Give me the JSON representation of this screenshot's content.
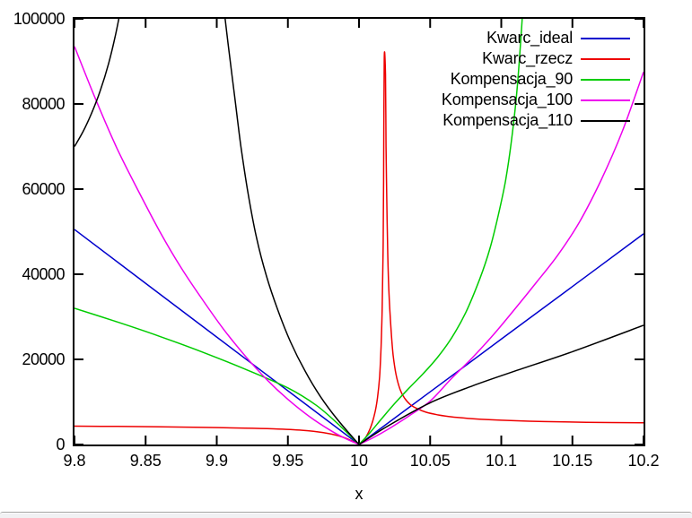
{
  "chart_data": {
    "type": "line",
    "title": "",
    "xlabel": "x",
    "ylabel": "",
    "xlim": [
      9.8,
      10.2
    ],
    "ylim": [
      0,
      100000
    ],
    "grid": false,
    "legend_position": "top-right-inside",
    "x_ticks": {
      "values": [
        9.8,
        9.85,
        9.9,
        9.95,
        10,
        10.05,
        10.1,
        10.15,
        10.2
      ],
      "labels": [
        "9.8",
        "9.85",
        "9.9",
        "9.95",
        "10",
        "10.05",
        "10.1",
        "10.15",
        "10.2"
      ]
    },
    "y_ticks": {
      "values": [
        0,
        20000,
        40000,
        60000,
        80000,
        100000
      ],
      "labels": [
        "0",
        "20000",
        "40000",
        "60000",
        "80000",
        "100000"
      ]
    },
    "series": [
      {
        "name": "Kwarc_ideal",
        "color": "#0000cd",
        "segments": [
          [
            [
              9.8,
              50500
            ],
            [
              9.85,
              37875
            ],
            [
              9.9,
              25250
            ],
            [
              9.95,
              12625
            ],
            [
              10,
              0
            ]
          ],
          [
            [
              10,
              0
            ],
            [
              10.05,
              12375
            ],
            [
              10.1,
              24750
            ],
            [
              10.15,
              37125
            ],
            [
              10.2,
              49500
            ]
          ]
        ]
      },
      {
        "name": "Kwarc_rzecz",
        "color": "#ee0000",
        "segments": [
          [
            [
              9.8,
              4310
            ],
            [
              9.83,
              4250
            ],
            [
              9.86,
              4160
            ],
            [
              9.89,
              4030
            ],
            [
              9.92,
              3860
            ],
            [
              9.94,
              3680
            ],
            [
              9.96,
              3350
            ],
            [
              9.975,
              2800
            ],
            [
              9.985,
              2100
            ],
            [
              9.992,
              1300
            ],
            [
              10,
              0
            ]
          ],
          [
            [
              10,
              0
            ],
            [
              10.004,
              1300
            ],
            [
              10.008,
              3900
            ],
            [
              10.011,
              7200
            ],
            [
              10.013,
              11000
            ],
            [
              10.0145,
              16000
            ],
            [
              10.0155,
              23000
            ],
            [
              10.0163,
              32000
            ],
            [
              10.0169,
              45000
            ],
            [
              10.0173,
              62000
            ],
            [
              10.0177,
              90500
            ],
            [
              10.0186,
              87000
            ],
            [
              10.019,
              70000
            ],
            [
              10.0195,
              58000
            ],
            [
              10.0202,
              45000
            ],
            [
              10.021,
              36000
            ],
            [
              10.0225,
              27000
            ],
            [
              10.024,
              21000
            ],
            [
              10.026,
              16500
            ],
            [
              10.029,
              12800
            ],
            [
              10.032,
              10900
            ],
            [
              10.036,
              9400
            ],
            [
              10.041,
              8400
            ],
            [
              10.047,
              7600
            ],
            [
              10.055,
              7000
            ],
            [
              10.065,
              6500
            ],
            [
              10.08,
              6050
            ],
            [
              10.1,
              5700
            ],
            [
              10.13,
              5400
            ],
            [
              10.16,
              5230
            ],
            [
              10.2,
              5100
            ]
          ]
        ]
      },
      {
        "name": "Kompensacja_90",
        "color": "#00cc00",
        "segments": [
          [
            [
              9.8,
              32000
            ],
            [
              9.83,
              28800
            ],
            [
              9.86,
              25400
            ],
            [
              9.89,
              21700
            ],
            [
              9.92,
              17700
            ],
            [
              9.95,
              13300
            ],
            [
              9.97,
              9200
            ],
            [
              9.985,
              4900
            ],
            [
              10,
              0
            ]
          ],
          [
            [
              10,
              0
            ],
            [
              10.008,
              2900
            ],
            [
              10.016,
              6100
            ],
            [
              10.025,
              9600
            ],
            [
              10.035,
              13200
            ],
            [
              10.045,
              16600
            ],
            [
              10.055,
              20400
            ],
            [
              10.065,
              25000
            ],
            [
              10.075,
              31000
            ],
            [
              10.085,
              39000
            ],
            [
              10.092,
              46000
            ],
            [
              10.098,
              54000
            ],
            [
              10.103,
              62000
            ],
            [
              10.107,
              71000
            ],
            [
              10.111,
              83000
            ],
            [
              10.1145,
              99000
            ],
            [
              10.116,
              108000
            ]
          ]
        ]
      },
      {
        "name": "Kompensacja_100",
        "color": "#ee00ee",
        "segments": [
          [
            [
              9.8,
              93500
            ],
            [
              9.815,
              81000
            ],
            [
              9.83,
              69500
            ],
            [
              9.845,
              59500
            ],
            [
              9.86,
              50000
            ],
            [
              9.875,
              41500
            ],
            [
              9.89,
              34000
            ],
            [
              9.905,
              27000
            ],
            [
              9.92,
              20800
            ],
            [
              9.935,
              15300
            ],
            [
              9.95,
              10600
            ],
            [
              9.965,
              6600
            ],
            [
              9.98,
              3300
            ],
            [
              9.99,
              1500
            ],
            [
              10,
              0
            ]
          ],
          [
            [
              10,
              0
            ],
            [
              10.01,
              1600
            ],
            [
              10.02,
              3500
            ],
            [
              10.035,
              6700
            ],
            [
              10.05,
              10200
            ],
            [
              10.065,
              15500
            ],
            [
              10.08,
              20500
            ],
            [
              10.095,
              26000
            ],
            [
              10.11,
              32000
            ],
            [
              10.125,
              38200
            ],
            [
              10.14,
              44600
            ],
            [
              10.155,
              52300
            ],
            [
              10.17,
              62000
            ],
            [
              10.185,
              73500
            ],
            [
              10.2,
              87500
            ]
          ]
        ]
      },
      {
        "name": "Kompensacja_110",
        "color": "#000000",
        "segments": [
          [
            [
              9.8,
              70000
            ],
            [
              9.806,
              73500
            ],
            [
              9.812,
              77800
            ],
            [
              9.818,
              83000
            ],
            [
              9.824,
              89500
            ],
            [
              9.829,
              96500
            ],
            [
              9.8335,
              104000
            ]
          ],
          [
            [
              9.9045,
              104000
            ],
            [
              9.908,
              94000
            ],
            [
              9.9125,
              82000
            ],
            [
              9.917,
              70000
            ],
            [
              9.922,
              59000
            ],
            [
              9.928,
              48500
            ],
            [
              9.935,
              39500
            ],
            [
              9.943,
              31500
            ],
            [
              9.952,
              24000
            ],
            [
              9.962,
              17300
            ],
            [
              9.973,
              11200
            ],
            [
              9.985,
              5800
            ],
            [
              10,
              0
            ]
          ],
          [
            [
              10,
              0
            ],
            [
              10.02,
              4300
            ],
            [
              10.05,
              9800
            ],
            [
              10.08,
              13800
            ],
            [
              10.11,
              17300
            ],
            [
              10.15,
              21800
            ],
            [
              10.2,
              28000
            ]
          ]
        ]
      }
    ]
  }
}
